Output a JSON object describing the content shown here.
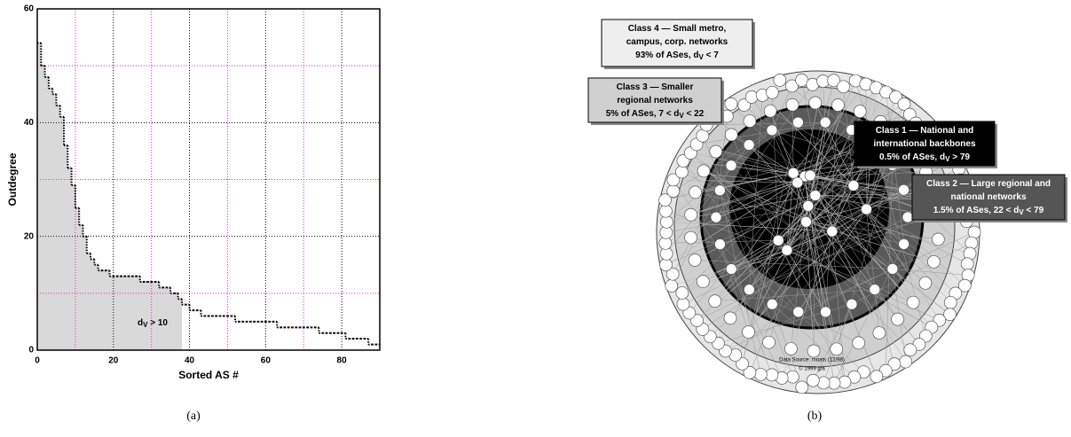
{
  "chart_data": {
    "type": "line",
    "step": true,
    "y_label": "Outdegree",
    "x_label": "Sorted AS #",
    "caption": "(a)",
    "x": [
      0,
      1,
      2,
      3,
      4,
      5,
      6,
      7,
      8,
      9,
      10,
      11,
      12,
      13,
      14,
      15,
      16,
      17,
      18,
      19,
      20,
      21,
      22,
      23,
      24,
      25,
      26,
      27,
      28,
      29,
      30,
      31,
      32,
      33,
      34,
      35,
      36,
      37,
      38,
      39,
      40,
      41,
      42,
      43,
      44,
      45,
      46,
      47,
      48,
      49,
      50,
      51,
      52,
      53,
      54,
      55,
      56,
      57,
      58,
      59,
      60,
      61,
      62,
      63,
      64,
      65,
      66,
      67,
      68,
      69,
      70,
      71,
      72,
      73,
      74,
      75,
      76,
      77,
      78,
      79,
      80,
      81,
      82,
      83,
      84,
      85,
      86,
      87,
      88,
      89
    ],
    "values": [
      54,
      50,
      48,
      46,
      45,
      43,
      41,
      36,
      32,
      29,
      25,
      22,
      20,
      17,
      16,
      15,
      14,
      14,
      14,
      13,
      13,
      13,
      13,
      13,
      13,
      13,
      13,
      12,
      12,
      12,
      12,
      12,
      11,
      11,
      11,
      10,
      10,
      9,
      8,
      8,
      7,
      7,
      7,
      6,
      6,
      6,
      6,
      6,
      6,
      6,
      6,
      6,
      5,
      5,
      5,
      5,
      5,
      5,
      5,
      5,
      5,
      5,
      5,
      4,
      4,
      4,
      4,
      4,
      4,
      4,
      4,
      4,
      4,
      4,
      3,
      3,
      3,
      3,
      3,
      3,
      3,
      2,
      2,
      2,
      2,
      2,
      2,
      1,
      1,
      1
    ],
    "color": "#000000",
    "xlim": [
      0,
      90
    ],
    "ylim": [
      0,
      60
    ],
    "xticks": [
      0,
      20,
      40,
      60,
      80
    ],
    "yticks": [
      0,
      20,
      40,
      60
    ],
    "minor_xticks": [
      10,
      30,
      50,
      70
    ],
    "minor_yticks": [
      10,
      30,
      50
    ],
    "grid": true,
    "grid_color": "#000000",
    "minor_grid_color": "#cc33cc",
    "highlight_xlim": [
      0,
      38
    ],
    "highlight_color": "#d9d9d9",
    "annotation": {
      "text": "d",
      "sub": "V",
      "tail": " > 10"
    }
  },
  "diagram": {
    "caption": "(b)",
    "boxes": [
      {
        "lines": [
          {
            "text": "Class 4 — Small metro,"
          },
          {
            "text": "campus, corp. networks"
          },
          {
            "text": "93% of ASes, d",
            "sub": "V",
            "tail": " < 7"
          }
        ]
      },
      {
        "lines": [
          {
            "text": "Class 3 — Smaller"
          },
          {
            "text": "regional networks"
          },
          {
            "text": "5% of ASes, 7 < d",
            "sub": "V",
            "tail": " < 22"
          }
        ]
      },
      {
        "lines": [
          {
            "text": "Class 1 — National and"
          },
          {
            "text": "international backbones"
          },
          {
            "text": "0.5% of ASes, d",
            "sub": "V",
            "tail": " > 79"
          }
        ]
      },
      {
        "lines": [
          {
            "text": "Class 2 — Large regional and"
          },
          {
            "text": "national networks"
          },
          {
            "text": "1.5% of ASes, 22 < d",
            "sub": "V",
            "tail": " < 79"
          }
        ]
      }
    ],
    "source": "Data Source: moats (12/98)",
    "copyright": "© 1999 gfa"
  }
}
